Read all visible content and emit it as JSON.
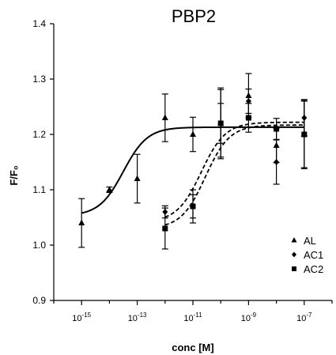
{
  "chart_data": {
    "type": "scatter",
    "title": "PBP2",
    "xlabel": "conc [M]",
    "ylabel": "F/F₀",
    "x_scale": "log10",
    "xlim": [
      1e-16,
      1e-06
    ],
    "ylim": [
      0.9,
      1.4
    ],
    "x_ticks": [
      1e-15,
      1e-13,
      1e-11,
      1e-09,
      1e-07
    ],
    "x_tick_labels": [
      {
        "base": "10",
        "exp": "-15"
      },
      {
        "base": "10",
        "exp": "-13"
      },
      {
        "base": "10",
        "exp": "-11"
      },
      {
        "base": "10",
        "exp": "-9"
      },
      {
        "base": "10",
        "exp": "-7"
      }
    ],
    "y_ticks": [
      0.9,
      1.0,
      1.1,
      1.2,
      1.3,
      1.4
    ],
    "y_tick_labels": [
      "0.9",
      "1.0",
      "1.1",
      "1.2",
      "1.3",
      "1.4"
    ],
    "legend_position": "bottom-right",
    "series": [
      {
        "name": "AL",
        "marker": "triangle",
        "line_style": "solid",
        "x": [
          1e-15,
          1e-14,
          1e-13,
          1e-12,
          1e-11,
          1e-10,
          1e-09,
          1e-08,
          1e-07
        ],
        "y": [
          1.04,
          1.1,
          1.12,
          1.23,
          1.2,
          1.22,
          1.27,
          1.18,
          1.2
        ],
        "err": [
          0.044,
          0.005,
          0.044,
          0.043,
          0.031,
          0.036,
          0.04,
          0.031,
          0.062
        ],
        "fit": {
          "bottom": 1.053,
          "top": 1.213,
          "log_ec50": -13.5,
          "hill": 1.0
        }
      },
      {
        "name": "AC1",
        "marker": "diamond",
        "line_style": "dashed",
        "x": [
          1e-12,
          1e-11,
          1e-10,
          1e-09,
          1e-08,
          1e-07
        ],
        "y": [
          1.06,
          1.07,
          1.22,
          1.26,
          1.15,
          1.23
        ],
        "err": [
          0.011,
          0.03,
          0.064,
          0.022,
          0.04,
          0.033
        ],
        "fit": {
          "bottom": 1.042,
          "top": 1.222,
          "log_ec50": -10.7,
          "hill": 1.0
        }
      },
      {
        "name": "AC2",
        "marker": "square",
        "line_style": "dashed",
        "x": [
          1e-12,
          1e-11,
          1e-10,
          1e-09,
          1e-08,
          1e-07
        ],
        "y": [
          1.03,
          1.07,
          1.22,
          1.23,
          1.21,
          1.2
        ],
        "err": [
          0.037,
          0.021,
          0.061,
          0.026,
          0.019,
          0.06
        ],
        "fit": {
          "bottom": 1.03,
          "top": 1.217,
          "log_ec50": -10.55,
          "hill": 1.0
        }
      }
    ]
  }
}
